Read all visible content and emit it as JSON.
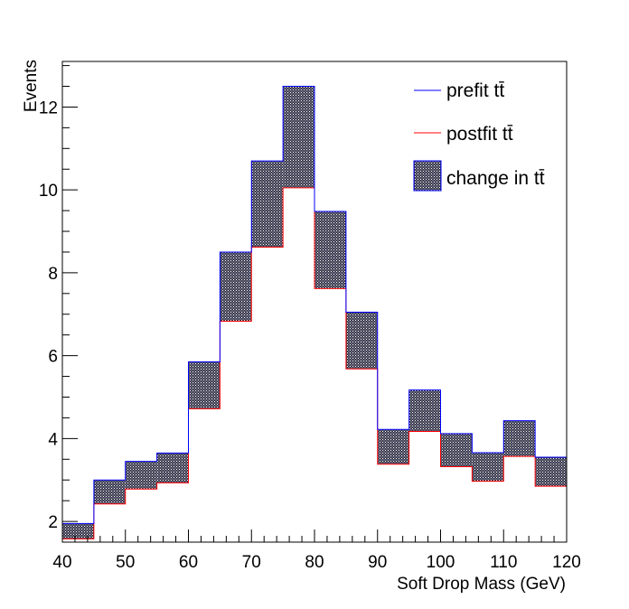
{
  "chart_data": {
    "type": "histogram",
    "title": "",
    "xlabel": "Soft Drop Mass (GeV)",
    "ylabel": "Events",
    "xlim": [
      40,
      120
    ],
    "ylim": [
      1.5,
      13.1
    ],
    "x_ticks": [
      40,
      50,
      60,
      70,
      80,
      90,
      100,
      110,
      120
    ],
    "y_ticks": [
      2,
      4,
      6,
      8,
      10,
      12
    ],
    "bin_edges": [
      40,
      45,
      50,
      55,
      60,
      65,
      70,
      75,
      80,
      85,
      90,
      95,
      100,
      105,
      110,
      115,
      120
    ],
    "series": [
      {
        "name": "prefit tt̄",
        "color": "#0000ff",
        "values": [
          1.95,
          3.0,
          3.45,
          3.65,
          5.85,
          8.5,
          10.7,
          12.5,
          9.48,
          7.05,
          4.22,
          5.17,
          4.12,
          3.66,
          4.43,
          3.55
        ]
      },
      {
        "name": "postfit tt̄",
        "color": "#ff0000",
        "values": [
          1.58,
          2.42,
          2.78,
          2.93,
          4.72,
          6.83,
          8.62,
          10.05,
          7.62,
          5.68,
          3.38,
          4.17,
          3.32,
          2.97,
          3.57,
          2.85
        ]
      }
    ],
    "band": {
      "name": "change in tt̄",
      "fill_color": "#000080"
    },
    "grid": false,
    "legend_position": "top-right"
  }
}
